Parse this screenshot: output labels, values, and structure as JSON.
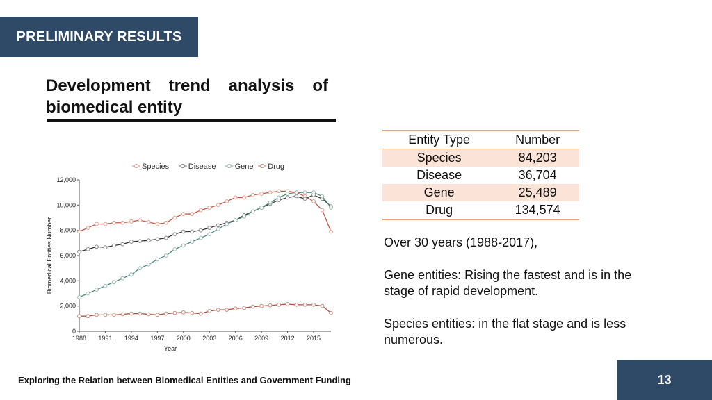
{
  "header": {
    "section_tag": "PRELIMINARY RESULTS"
  },
  "slide": {
    "title": "Development trend analysis of biomedical entity"
  },
  "table": {
    "headers": [
      "Entity Type",
      "Number"
    ],
    "rows": [
      [
        "Species",
        "84,203"
      ],
      [
        "Disease",
        "36,704"
      ],
      [
        "Gene",
        "25,489"
      ],
      [
        "Drug",
        "134,574"
      ]
    ]
  },
  "notes": [
    "Over 30 years (1988-2017),",
    "Gene entities: Rising the fastest and is in the stage of rapid development.",
    "Species entities:  in the flat stage and is less numerous."
  ],
  "footer": {
    "text": "Exploring the Relation between Biomedical Entities and Government Funding",
    "page_number": "13"
  },
  "chart_data": {
    "type": "line",
    "xlabel": "Year",
    "ylabel": "Biomedical Entities Number",
    "ylim": [
      0,
      12000
    ],
    "xlim": [
      1988,
      2017
    ],
    "x_ticks": [
      1988,
      1991,
      1994,
      1997,
      2000,
      2003,
      2006,
      2009,
      2012,
      2015
    ],
    "y_ticks": [
      0,
      2000,
      4000,
      6000,
      8000,
      10000,
      12000
    ],
    "y_tick_labels": [
      "0",
      "2,000",
      "4,000",
      "6,000",
      "8,000",
      "10,000",
      "12,000"
    ],
    "legend_position": "top",
    "x": [
      1988,
      1989,
      1990,
      1991,
      1992,
      1993,
      1994,
      1995,
      1996,
      1997,
      1998,
      1999,
      2000,
      2001,
      2002,
      2003,
      2004,
      2005,
      2006,
      2007,
      2008,
      2009,
      2010,
      2011,
      2012,
      2013,
      2014,
      2015,
      2016,
      2017
    ],
    "series": [
      {
        "name": "Species",
        "color": "#e0a090",
        "line_color": "#c05a48",
        "values": [
          7900,
          8200,
          8500,
          8500,
          8600,
          8600,
          8700,
          8800,
          8650,
          8500,
          8600,
          9000,
          9300,
          9300,
          9600,
          9800,
          10000,
          10300,
          10600,
          10600,
          10800,
          10900,
          11000,
          11100,
          11100,
          11000,
          10700,
          10300,
          9600,
          7900
        ]
      },
      {
        "name": "Disease",
        "color": "#8a8a8a",
        "line_color": "#333333",
        "values": [
          6300,
          6500,
          6700,
          6650,
          6800,
          6900,
          7100,
          7150,
          7200,
          7300,
          7400,
          7700,
          7900,
          7900,
          8000,
          8200,
          8400,
          8600,
          8800,
          9200,
          9500,
          9800,
          10100,
          10400,
          10600,
          10700,
          10500,
          10800,
          10500,
          9900
        ]
      },
      {
        "name": "Gene",
        "color": "#9fb8b0",
        "line_color": "#4a8a7a",
        "values": [
          2700,
          3000,
          3300,
          3600,
          3900,
          4200,
          4500,
          5000,
          5300,
          5700,
          6000,
          6500,
          6800,
          7100,
          7400,
          7700,
          8100,
          8500,
          8800,
          9100,
          9500,
          9800,
          10200,
          10600,
          10900,
          11000,
          11000,
          11000,
          10700,
          9800
        ]
      },
      {
        "name": "Drug",
        "color": "#c48f80",
        "line_color": "#b05040",
        "values": [
          1200,
          1200,
          1300,
          1300,
          1300,
          1350,
          1400,
          1400,
          1350,
          1300,
          1400,
          1450,
          1500,
          1450,
          1400,
          1600,
          1700,
          1700,
          1800,
          1850,
          1950,
          2000,
          2050,
          2100,
          2150,
          2100,
          2100,
          2100,
          2000,
          1450
        ]
      }
    ]
  }
}
